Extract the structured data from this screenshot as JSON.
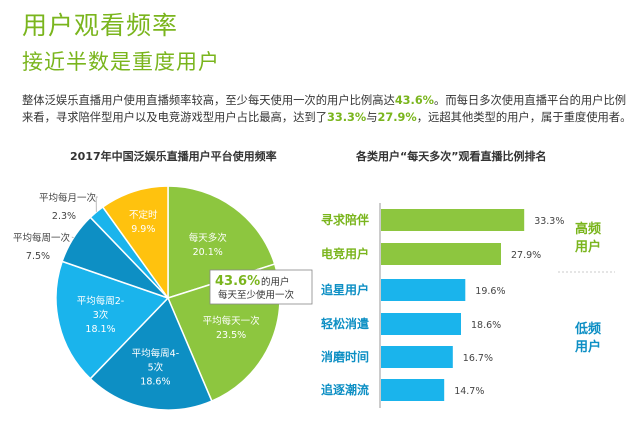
{
  "page": {
    "title": "用户观看频率",
    "subtitle": "接近半数是重度用户",
    "intro": {
      "p1": "整体泛娱乐直播用户使用直播频率较高，至少每天使用一次的用户比例高达",
      "hl1": "43.6%",
      "p2": "。而每日多次使用直播平台的用户比例来看，寻求陪伴型用户以及电竞游戏型用户占比最高，达到了",
      "hl2": "33.3%",
      "p3": "与",
      "hl3": "27.9%",
      "p4": "，远超其他类型的用户，属于重度使用者。"
    }
  },
  "colors": {
    "green": "#8dc63f",
    "green_dark": "#7ab51d",
    "blue": "#1ab4ec",
    "blue_dark": "#0d8fc4",
    "yellow": "#ffc20e",
    "gray": "#aaaaaa"
  },
  "chart_data": [
    {
      "type": "pie",
      "title": "2017年中国泛娱乐直播用户平台使用频率",
      "slices": [
        {
          "name": "每天多次",
          "value": 20.1,
          "color": "#8dc63f"
        },
        {
          "name": "平均每天一次",
          "value": 23.5,
          "color": "#8dc63f"
        },
        {
          "name": "平均每周4-5次",
          "value": 18.6,
          "color": "#0d8fc4"
        },
        {
          "name": "平均每周2-3次",
          "value": 18.1,
          "color": "#1ab4ec"
        },
        {
          "name": "平均每周一次",
          "value": 7.5,
          "color": "#0d8fc4"
        },
        {
          "name": "平均每月一次",
          "value": 2.3,
          "color": "#1ab4ec"
        },
        {
          "name": "不定时",
          "value": 9.9,
          "color": "#ffc20e"
        }
      ],
      "callout": {
        "value": "43.6%",
        "text1": "的用户",
        "text2": "每天至少使用一次"
      }
    },
    {
      "type": "bar",
      "title": "各类用户“每天多次”观看直播比例排名",
      "categories": [
        "寻求陪伴",
        "电竞用户",
        "追星用户",
        "轻松消遣",
        "消磨时间",
        "追逐潮流"
      ],
      "values": [
        33.3,
        27.9,
        19.6,
        18.6,
        16.7,
        14.7
      ],
      "unit": "%",
      "groups": [
        {
          "label_line1": "高频",
          "label_line2": "用户",
          "from": 0,
          "to": 1,
          "color": "#7ab51d"
        },
        {
          "label_line1": "低频",
          "label_line2": "用户",
          "from": 2,
          "to": 5,
          "color": "#0d8fc4"
        }
      ]
    }
  ]
}
